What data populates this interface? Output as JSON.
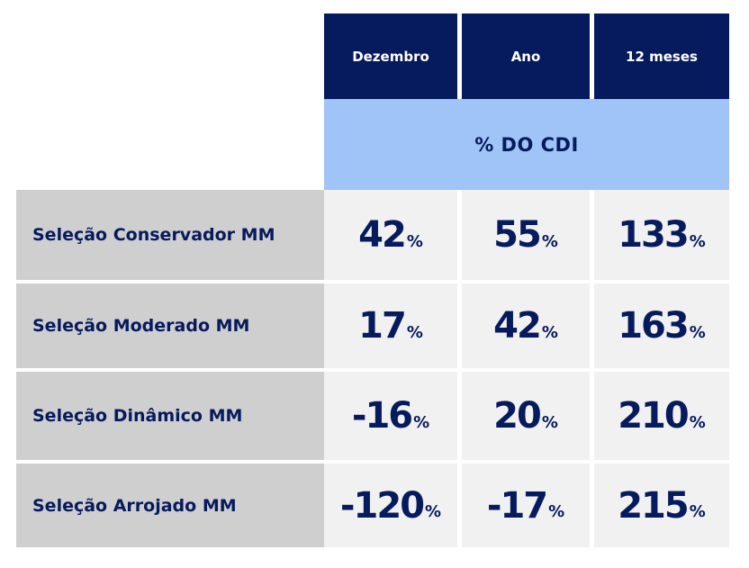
{
  "header": {
    "columns": [
      "Dezembro",
      "Ano",
      "12 meses"
    ],
    "subheader": "% DO CDI"
  },
  "rows": [
    {
      "label": "Seleção Conservador MM",
      "values": [
        "42",
        "55",
        "133"
      ]
    },
    {
      "label": "Seleção Moderado MM",
      "values": [
        "17",
        "42",
        "163"
      ]
    },
    {
      "label": "Seleção Dinâmico MM",
      "values": [
        "-16",
        "20",
        "210"
      ]
    },
    {
      "label": "Seleção Arrojado MM",
      "values": [
        "-120",
        "-17",
        "215"
      ]
    }
  ],
  "unit": "%",
  "colors": {
    "navy": "#061a5e",
    "light_blue": "#a0c3f8",
    "label_bg": "#cfcfcf",
    "value_bg": "#f1f1f1"
  }
}
